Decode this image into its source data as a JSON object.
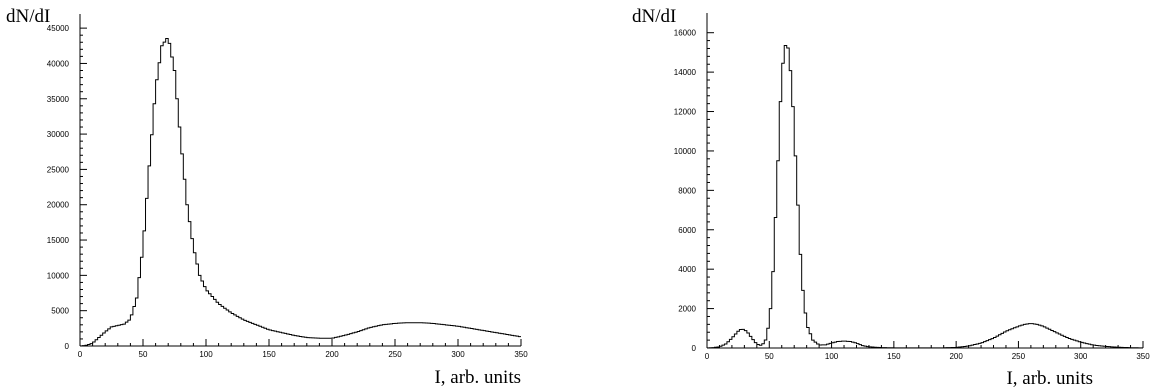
{
  "chart_data": [
    {
      "type": "line",
      "title": "",
      "ylabel": "dN/dI",
      "xlabel": "I, arb. units",
      "xlim": [
        0,
        350
      ],
      "ylim": [
        0,
        47000
      ],
      "xticks": [
        0,
        50,
        100,
        150,
        200,
        250,
        300,
        350
      ],
      "yticks": [
        0,
        5000,
        10000,
        15000,
        20000,
        25000,
        30000,
        35000,
        40000,
        45000
      ],
      "grid": false,
      "series": [
        {
          "x": [
            0,
            5,
            10,
            15,
            20,
            25,
            30,
            35,
            40,
            45,
            50,
            55,
            60,
            65,
            70,
            75,
            80,
            85,
            90,
            95,
            100,
            110,
            120,
            130,
            140,
            150,
            160,
            170,
            180,
            190,
            200,
            210,
            220,
            230,
            240,
            250,
            260,
            270,
            280,
            290,
            300,
            310,
            320,
            330,
            340,
            350
          ],
          "values": [
            0,
            100,
            400,
            1200,
            2000,
            2700,
            2900,
            3100,
            3800,
            6800,
            14000,
            25500,
            36500,
            42500,
            43800,
            39000,
            29000,
            20000,
            14000,
            10000,
            8000,
            6000,
            4700,
            3700,
            3000,
            2300,
            1900,
            1500,
            1200,
            1100,
            1100,
            1500,
            2000,
            2600,
            3000,
            3200,
            3300,
            3300,
            3200,
            3000,
            2800,
            2500,
            2200,
            1900,
            1600,
            1300
          ]
        }
      ]
    },
    {
      "type": "line",
      "title": "",
      "ylabel": "dN/dI",
      "xlabel": "I, arb. units",
      "xlim": [
        0,
        350
      ],
      "ylim": [
        0,
        17000
      ],
      "xticks": [
        0,
        50,
        100,
        150,
        200,
        250,
        300,
        350
      ],
      "yticks": [
        0,
        2000,
        4000,
        6000,
        8000,
        10000,
        12000,
        14000,
        16000
      ],
      "grid": false,
      "series": [
        {
          "x": [
            0,
            5,
            10,
            15,
            20,
            25,
            28,
            32,
            36,
            40,
            44,
            48,
            52,
            56,
            60,
            64,
            68,
            72,
            76,
            80,
            85,
            90,
            95,
            100,
            105,
            110,
            115,
            120,
            125,
            130,
            140,
            150,
            160,
            170,
            180,
            190,
            200,
            210,
            220,
            230,
            240,
            250,
            255,
            260,
            265,
            270,
            280,
            290,
            300,
            310,
            320,
            330,
            340,
            350
          ],
          "values": [
            0,
            20,
            60,
            200,
            500,
            850,
            980,
            850,
            500,
            200,
            120,
            500,
            2500,
            8000,
            14000,
            15800,
            13500,
            8500,
            3500,
            1200,
            400,
            150,
            160,
            250,
            330,
            350,
            330,
            250,
            120,
            60,
            20,
            10,
            5,
            5,
            5,
            10,
            30,
            100,
            250,
            500,
            850,
            1100,
            1200,
            1250,
            1200,
            1100,
            800,
            500,
            300,
            150,
            80,
            40,
            15,
            5
          ]
        }
      ]
    }
  ]
}
